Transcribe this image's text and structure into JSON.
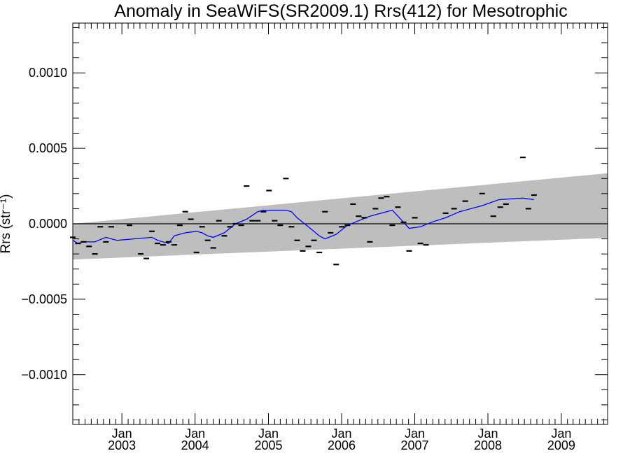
{
  "chart_data": {
    "type": "scatter",
    "title": "Anomaly in SeaWiFS(SR2009.1) Rrs(412) for Mesotrophic",
    "ylabel": "Rrs (str⁻¹)",
    "xlabel": "",
    "xlim": [
      "2002-05-01",
      "2009-08-20"
    ],
    "ylim": [
      -0.00133,
      0.00133
    ],
    "ytick_values": [
      -0.001,
      -0.0005,
      0.0,
      0.0005,
      0.001
    ],
    "ytick_labels": [
      "−0.0010",
      "−0.0005",
      "0.0000",
      "0.0005",
      "0.0010"
    ],
    "xtick_labels": [
      {
        "month": "Jan",
        "year": "2003",
        "date": "2003-01-01"
      },
      {
        "month": "Jan",
        "year": "2004",
        "date": "2004-01-01"
      },
      {
        "month": "Jan",
        "year": "2005",
        "date": "2005-01-01"
      },
      {
        "month": "Jan",
        "year": "2006",
        "date": "2006-01-01"
      },
      {
        "month": "Jan",
        "year": "2007",
        "date": "2007-01-01"
      },
      {
        "month": "Jan",
        "year": "2008",
        "date": "2008-01-01"
      },
      {
        "month": "Jan",
        "year": "2009",
        "date": "2009-01-01"
      }
    ],
    "zero_line": 0.0,
    "band": {
      "color": "#bebebe",
      "upper": [
        [
          "2002-05-01",
          0.0
        ],
        [
          "2009-08-20",
          0.000335
        ]
      ],
      "lower": [
        [
          "2002-05-01",
          -0.000237
        ],
        [
          "2009-08-20",
          -9.35e-05
        ]
      ]
    },
    "series": [
      {
        "kind": "points",
        "color": "#000000",
        "points": [
          [
            "2002-05-01",
            -9e-05
          ],
          [
            "2002-05-27",
            -0.00013
          ],
          [
            "2002-06-24",
            -0.00012
          ],
          [
            "2002-07-21",
            -0.00015
          ],
          [
            "2002-08-19",
            -0.0002
          ],
          [
            "2002-09-15",
            -2e-05
          ],
          [
            "2002-10-13",
            -0.00012
          ],
          [
            "2002-11-09",
            -2e-05
          ],
          [
            "2003-02-08",
            -1e-05
          ],
          [
            "2003-04-05",
            -0.0002
          ],
          [
            "2003-05-03",
            -0.00023
          ],
          [
            "2003-05-31",
            -5e-05
          ],
          [
            "2003-06-28",
            -0.00013
          ],
          [
            "2003-07-25",
            -0.00014
          ],
          [
            "2003-08-22",
            -0.00012
          ],
          [
            "2003-09-19",
            -0.00014
          ],
          [
            "2003-10-17",
            -1e-05
          ],
          [
            "2003-11-13",
            8e-05
          ],
          [
            "2003-12-11",
            3e-05
          ],
          [
            "2004-01-08",
            -0.00019
          ],
          [
            "2004-02-05",
            -2e-05
          ],
          [
            "2004-03-04",
            -0.00011
          ],
          [
            "2004-04-01",
            -0.00016
          ],
          [
            "2004-04-29",
            2e-05
          ],
          [
            "2004-05-26",
            -8e-05
          ],
          [
            "2004-06-23",
            -2e-05
          ],
          [
            "2004-07-21",
            0.0
          ],
          [
            "2004-08-18",
            -1e-05
          ],
          [
            "2004-09-14",
            0.00025
          ],
          [
            "2004-10-12",
            2e-05
          ],
          [
            "2004-11-09",
            2e-05
          ],
          [
            "2004-12-07",
            8e-05
          ],
          [
            "2005-01-04",
            0.00022
          ],
          [
            "2005-02-01",
            2e-05
          ],
          [
            "2005-03-01",
            -1e-05
          ],
          [
            "2005-03-29",
            0.0003
          ],
          [
            "2005-04-26",
            -2e-05
          ],
          [
            "2005-05-24",
            -0.00011
          ],
          [
            "2005-06-21",
            -0.00018
          ],
          [
            "2005-07-19",
            -0.00015
          ],
          [
            "2005-08-16",
            -0.00011
          ],
          [
            "2005-09-12",
            -0.00019
          ],
          [
            "2005-10-10",
            8e-05
          ],
          [
            "2005-11-07",
            -6e-05
          ],
          [
            "2005-12-05",
            -0.00027
          ],
          [
            "2006-01-02",
            -2e-05
          ],
          [
            "2006-01-30",
            -1e-05
          ],
          [
            "2006-02-27",
            0.00013
          ],
          [
            "2006-03-27",
            5e-05
          ],
          [
            "2006-04-24",
            4e-05
          ],
          [
            "2006-05-22",
            -0.00012
          ],
          [
            "2006-06-19",
            0.0001
          ],
          [
            "2006-07-17",
            0.00017
          ],
          [
            "2006-08-14",
            0.00018
          ],
          [
            "2006-09-11",
            -1e-05
          ],
          [
            "2006-10-09",
            0.00011
          ],
          [
            "2006-11-06",
            1e-05
          ],
          [
            "2006-12-04",
            -0.00018
          ],
          [
            "2007-01-01",
            4e-05
          ],
          [
            "2007-01-29",
            -0.00013
          ],
          [
            "2007-02-26",
            -0.00014
          ],
          [
            "2007-06-04",
            7e-05
          ],
          [
            "2007-07-16",
            0.0001
          ],
          [
            "2007-09-10",
            0.00015
          ],
          [
            "2007-12-03",
            0.0002
          ],
          [
            "2008-01-28",
            5e-05
          ],
          [
            "2008-03-03",
            0.00011
          ],
          [
            "2008-03-31",
            0.00013
          ],
          [
            "2008-06-23",
            0.00044
          ],
          [
            "2008-07-21",
            0.0001
          ],
          [
            "2008-08-18",
            0.00019
          ]
        ]
      },
      {
        "kind": "line",
        "color": "#0000ff",
        "points": [
          [
            "2002-05-01",
            -0.00011
          ],
          [
            "2002-05-27",
            -0.00013
          ],
          [
            "2002-06-24",
            -0.00012
          ],
          [
            "2002-08-19",
            -0.00012
          ],
          [
            "2002-10-13",
            -9e-05
          ],
          [
            "2002-12-07",
            -0.00011
          ],
          [
            "2003-03-03",
            -0.0001
          ],
          [
            "2003-05-31",
            -9e-05
          ],
          [
            "2003-06-28",
            -0.00011
          ],
          [
            "2003-08-22",
            -0.00013
          ],
          [
            "2003-09-19",
            -8e-05
          ],
          [
            "2003-11-13",
            -6e-05
          ],
          [
            "2004-01-08",
            -5e-05
          ],
          [
            "2004-02-05",
            -6e-05
          ],
          [
            "2004-03-04",
            -8e-05
          ],
          [
            "2004-04-01",
            -9e-05
          ],
          [
            "2004-05-26",
            -6e-05
          ],
          [
            "2004-07-21",
            0.0
          ],
          [
            "2004-09-14",
            3e-05
          ],
          [
            "2004-11-09",
            8e-05
          ],
          [
            "2004-12-07",
            9e-05
          ],
          [
            "2005-02-01",
            9e-05
          ],
          [
            "2005-03-29",
            9e-05
          ],
          [
            "2005-04-26",
            8e-05
          ],
          [
            "2005-05-24",
            4e-05
          ],
          [
            "2005-07-19",
            -2e-05
          ],
          [
            "2005-09-12",
            -8e-05
          ],
          [
            "2005-10-10",
            -0.0001
          ],
          [
            "2005-12-05",
            -7e-05
          ],
          [
            "2006-01-30",
            -1e-05
          ],
          [
            "2006-03-27",
            2e-05
          ],
          [
            "2006-05-22",
            5e-05
          ],
          [
            "2006-07-17",
            7e-05
          ],
          [
            "2006-09-11",
            9e-05
          ],
          [
            "2006-10-09",
            5e-05
          ],
          [
            "2006-12-04",
            -3e-05
          ],
          [
            "2007-01-29",
            -2e-05
          ],
          [
            "2007-03-26",
            1e-05
          ],
          [
            "2007-06-04",
            4e-05
          ],
          [
            "2007-08-13",
            8e-05
          ],
          [
            "2007-10-08",
            0.0001
          ],
          [
            "2007-12-03",
            0.00012
          ],
          [
            "2008-02-25",
            0.00016
          ],
          [
            "2008-06-23",
            0.00017
          ],
          [
            "2008-08-18",
            0.00016
          ]
        ]
      }
    ]
  }
}
